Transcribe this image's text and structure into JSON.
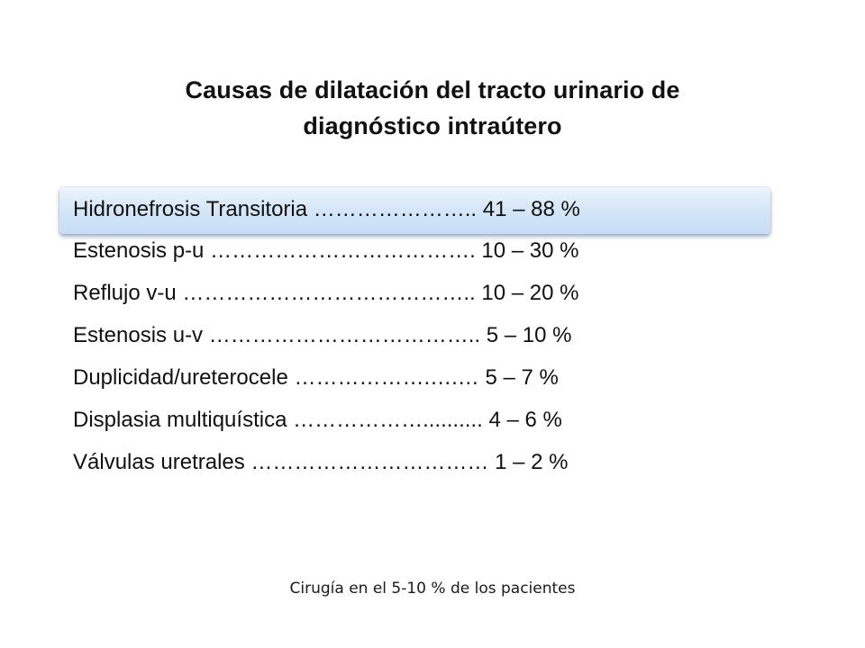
{
  "slide": {
    "title_line1": "Causas de dilatación del tracto urinario de",
    "title_line2": "diagnóstico intraútero",
    "items": [
      {
        "text": "Hidronefrosis Transitoria ………………….. 41 – 88 %"
      },
      {
        "text": "Estenosis p-u ………………………………. 10 – 30 %"
      },
      {
        "text": "Reflujo v-u ………………………………….. 10 – 20 %"
      },
      {
        "text": "Estenosis u-v ……………………………….. 5 – 10 %"
      },
      {
        "text": "Duplicidad/ureterocele ……………….….… 5 – 7 %"
      },
      {
        "text": "Displasia multiquística ……………….......... 4 – 6 %"
      },
      {
        "text": "Válvulas uretrales …………………………… 1 – 2 %"
      }
    ],
    "footer": "Cirugía en el 5-10 % de los pacientes",
    "colors": {
      "highlight_bg": "#d6e7f8",
      "text": "#111111"
    }
  }
}
